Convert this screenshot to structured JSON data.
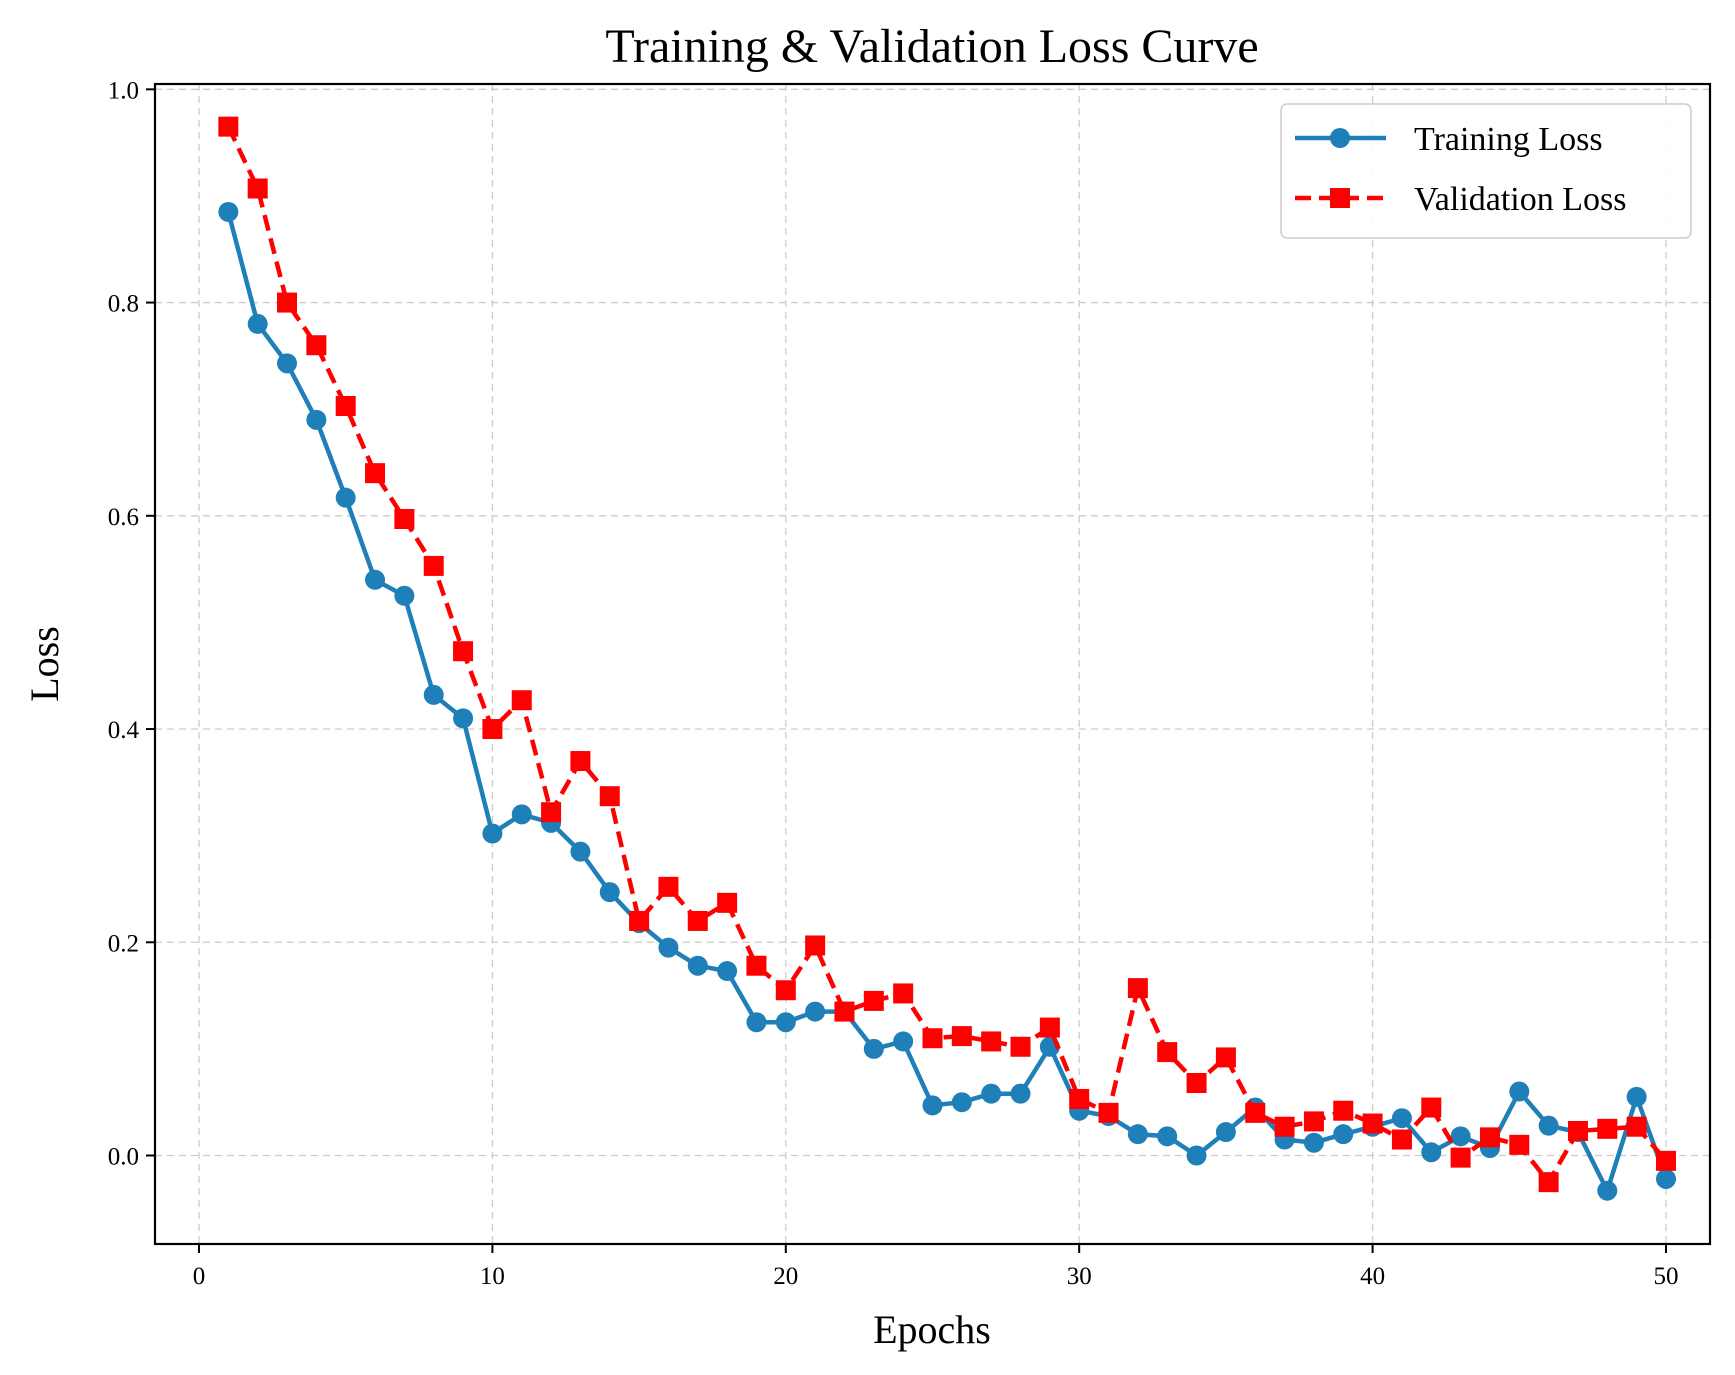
{
  "chart_data": {
    "type": "line",
    "title": "Training & Validation Loss Curve",
    "xlabel": "Epochs",
    "ylabel": "Loss",
    "xlim": [
      -1.5,
      51.5
    ],
    "ylim": [
      -0.083,
      1.005
    ],
    "x_ticks": [
      0,
      10,
      20,
      30,
      40,
      50
    ],
    "x_tick_labels": [
      "0",
      "10",
      "20",
      "30",
      "40",
      "50"
    ],
    "y_ticks": [
      0.0,
      0.2,
      0.4,
      0.6,
      0.8,
      1.0
    ],
    "y_tick_labels": [
      "0.0",
      "0.2",
      "0.4",
      "0.6",
      "0.8",
      "1.0"
    ],
    "grid": true,
    "legend_position": "top-right",
    "x": [
      1,
      2,
      3,
      4,
      5,
      6,
      7,
      8,
      9,
      10,
      11,
      12,
      13,
      14,
      15,
      16,
      17,
      18,
      19,
      20,
      21,
      22,
      23,
      24,
      25,
      26,
      27,
      28,
      29,
      30,
      31,
      32,
      33,
      34,
      35,
      36,
      37,
      38,
      39,
      40,
      41,
      42,
      43,
      44,
      45,
      46,
      47,
      48,
      49,
      50
    ],
    "series": [
      {
        "name": "Training Loss",
        "color": "#1f7fb8",
        "line_style": "solid",
        "marker": "circle",
        "values": [
          0.885,
          0.78,
          0.743,
          0.69,
          0.617,
          0.54,
          0.525,
          0.432,
          0.41,
          0.302,
          0.32,
          0.312,
          0.285,
          0.247,
          0.218,
          0.195,
          0.178,
          0.173,
          0.125,
          0.125,
          0.135,
          0.135,
          0.1,
          0.107,
          0.047,
          0.05,
          0.058,
          0.058,
          0.102,
          0.042,
          0.037,
          0.02,
          0.018,
          0.0,
          0.022,
          0.045,
          0.015,
          0.012,
          0.02,
          0.027,
          0.035,
          0.003,
          0.018,
          0.007,
          0.06,
          0.028,
          0.022,
          -0.033,
          0.055,
          -0.022
        ]
      },
      {
        "name": "Validation Loss",
        "color": "#ff0000",
        "line_style": "dashed",
        "marker": "square",
        "values": [
          0.965,
          0.907,
          0.8,
          0.76,
          0.703,
          0.64,
          0.597,
          0.553,
          0.473,
          0.4,
          0.427,
          0.322,
          0.37,
          0.337,
          0.22,
          0.252,
          0.22,
          0.237,
          0.178,
          0.155,
          0.197,
          0.135,
          0.145,
          0.152,
          0.11,
          0.112,
          0.107,
          0.102,
          0.12,
          0.053,
          0.04,
          0.157,
          0.097,
          0.068,
          0.092,
          0.04,
          0.027,
          0.032,
          0.042,
          0.03,
          0.015,
          0.045,
          -0.002,
          0.017,
          0.01,
          -0.025,
          0.023,
          0.025,
          0.027,
          -0.005
        ]
      }
    ]
  }
}
